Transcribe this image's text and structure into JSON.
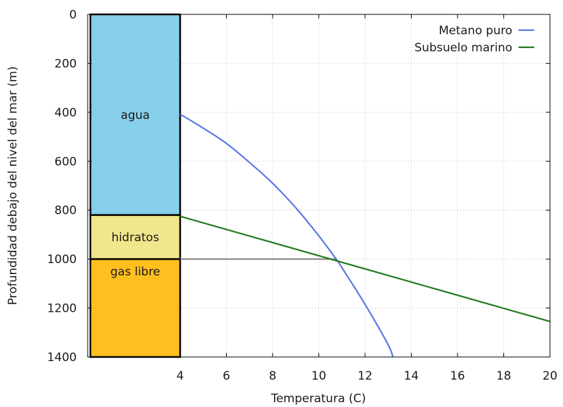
{
  "chart_data": {
    "type": "line",
    "xlabel": "Temperatura (C)",
    "ylabel": "Profundidad debajo del nivel del mar (m)",
    "xlim": [
      0,
      20
    ],
    "ylim": [
      1400,
      0
    ],
    "y_inverted": true,
    "grid": true,
    "legend_position": "top-right",
    "x_ticks": [
      "4",
      "6",
      "8",
      "10",
      "12",
      "14",
      "16",
      "18",
      "20"
    ],
    "y_ticks": [
      "0",
      "200",
      "400",
      "600",
      "800",
      "1000",
      "1200",
      "1400"
    ],
    "zones": [
      {
        "label": "agua",
        "y_from": 0,
        "y_to": 820,
        "x_from": 0,
        "x_to": 4,
        "color": "#87ceeb"
      },
      {
        "label": "hidratos",
        "y_from": 820,
        "y_to": 1000,
        "x_from": 0,
        "x_to": 4,
        "color": "#f0e68c"
      },
      {
        "label": "gas libre",
        "y_from": 1000,
        "y_to": 1400,
        "x_from": 0,
        "x_to": 4,
        "color": "#ffbf1f"
      }
    ],
    "reference_lines": [
      {
        "y": 1000,
        "x_from": 4,
        "x_to": 10.75,
        "color": "#808080"
      }
    ],
    "series": [
      {
        "name": "Metano puro",
        "color": "#5a78e6",
        "x": [
          4,
          5,
          6,
          7,
          8,
          9,
          10,
          10.75,
          11,
          12,
          13,
          13.2
        ],
        "y": [
          408,
          465,
          527,
          605,
          690,
          790,
          905,
          1000,
          1035,
          1185,
          1350,
          1400
        ]
      },
      {
        "name": "Subsuelo marino",
        "color": "#1f7a1f",
        "x": [
          4,
          20
        ],
        "y": [
          825,
          1255
        ]
      }
    ]
  }
}
